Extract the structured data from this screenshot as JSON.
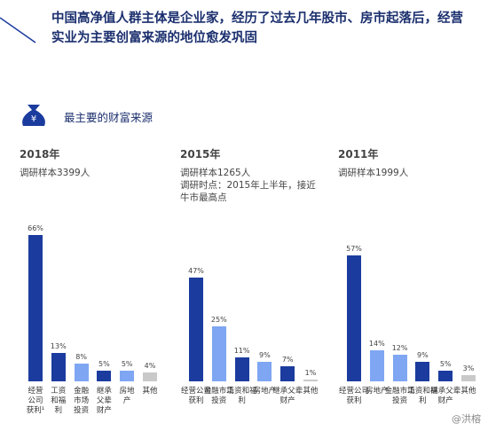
{
  "header": {
    "title": "中国高净值人群主体是企业家，经历了过去几年股市、房市起落后，经营实业为主要创富来源的地位愈发巩固",
    "section": "最主要的财富来源"
  },
  "watermark": "@洪榕",
  "chart_data": [
    {
      "type": "bar",
      "title": "2018年",
      "notes": [
        "调研样本3399人"
      ],
      "categories": [
        "经营公司获利¹",
        "工资和福利",
        "金融市场投资",
        "继承父辈财产",
        "房地产",
        "其他"
      ],
      "values": [
        66,
        13,
        8,
        5,
        5,
        4
      ],
      "value_labels": [
        "66%",
        "13%",
        "8%",
        "5%",
        "5%",
        "4%"
      ],
      "colors": [
        "#1b3c9e",
        "#1b3c9e",
        "#7ea6f2",
        "#1b3c9e",
        "#7ea6f2",
        "#c9c9c9"
      ]
    },
    {
      "type": "bar",
      "title": "2015年",
      "notes": [
        "调研样本1265人",
        "调研时点：2015年上半年，接近牛市最高点"
      ],
      "categories": [
        "经营公司获利",
        "金融市场投资",
        "工资和福利",
        "房地产",
        "继承父辈财产",
        "其他"
      ],
      "values": [
        47,
        25,
        11,
        9,
        7,
        1
      ],
      "value_labels": [
        "47%",
        "25%",
        "11%",
        "9%",
        "7%",
        "1%"
      ],
      "colors": [
        "#1b3c9e",
        "#7ea6f2",
        "#1b3c9e",
        "#7ea6f2",
        "#1b3c9e",
        "#c9c9c9"
      ]
    },
    {
      "type": "bar",
      "title": "2011年",
      "notes": [
        "调研样本1999人"
      ],
      "categories": [
        "经营公司获利",
        "房地产",
        "金融市场投资",
        "工资和福利",
        "继承父辈财产",
        "其他"
      ],
      "values": [
        57,
        14,
        12,
        9,
        5,
        3
      ],
      "value_labels": [
        "57%",
        "14%",
        "12%",
        "9%",
        "5%",
        "3%"
      ],
      "colors": [
        "#1b3c9e",
        "#7ea6f2",
        "#7ea6f2",
        "#1b3c9e",
        "#1b3c9e",
        "#c9c9c9"
      ]
    }
  ]
}
